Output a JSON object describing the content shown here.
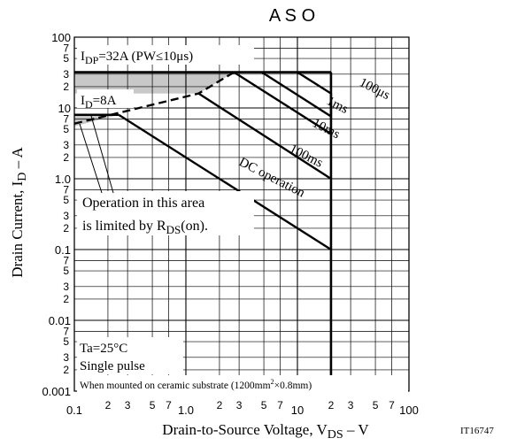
{
  "chart_data": {
    "type": "line",
    "title": "A S O",
    "xlabel": {
      "main": "Drain-to-Source Voltage, V",
      "sub": "DS",
      "tail": " – V"
    },
    "ylabel": {
      "main": "Drain Current, I",
      "sub": "D",
      "tail": " – A"
    },
    "xscale": "log",
    "yscale": "log",
    "xlim": [
      0.1,
      100
    ],
    "ylim": [
      0.001,
      100
    ],
    "grid": true,
    "x_major_ticks": [
      {
        "v": 0.1,
        "label": "0.1"
      },
      {
        "v": 1,
        "label": "1.0"
      },
      {
        "v": 10,
        "label": "10"
      },
      {
        "v": 100,
        "label": "100"
      }
    ],
    "x_minor_ticks": [
      {
        "v": 0.2,
        "label": "2"
      },
      {
        "v": 0.3,
        "label": "3"
      },
      {
        "v": 0.5,
        "label": "5"
      },
      {
        "v": 0.7,
        "label": "7"
      },
      {
        "v": 2,
        "label": "2"
      },
      {
        "v": 3,
        "label": "3"
      },
      {
        "v": 5,
        "label": "5"
      },
      {
        "v": 7,
        "label": "7"
      },
      {
        "v": 20,
        "label": "2"
      },
      {
        "v": 30,
        "label": "3"
      },
      {
        "v": 50,
        "label": "5"
      },
      {
        "v": 70,
        "label": "7"
      }
    ],
    "y_major_ticks": [
      {
        "v": 0.001,
        "label": "0.001"
      },
      {
        "v": 0.01,
        "label": "0.01"
      },
      {
        "v": 0.1,
        "label": "0.1"
      },
      {
        "v": 1,
        "label": "1.0"
      },
      {
        "v": 10,
        "label": "10"
      },
      {
        "v": 100,
        "label": "100"
      }
    ],
    "y_minor_ticks": [
      {
        "v": 0.002,
        "label": "2"
      },
      {
        "v": 0.003,
        "label": "3"
      },
      {
        "v": 0.005,
        "label": "5"
      },
      {
        "v": 0.007,
        "label": "7"
      },
      {
        "v": 0.02,
        "label": "2"
      },
      {
        "v": 0.03,
        "label": "3"
      },
      {
        "v": 0.05,
        "label": "5"
      },
      {
        "v": 0.07,
        "label": "7"
      },
      {
        "v": 0.2,
        "label": "2"
      },
      {
        "v": 0.3,
        "label": "3"
      },
      {
        "v": 0.5,
        "label": "5"
      },
      {
        "v": 0.7,
        "label": "7"
      },
      {
        "v": 2,
        "label": "2"
      },
      {
        "v": 3,
        "label": "3"
      },
      {
        "v": 5,
        "label": "5"
      },
      {
        "v": 7,
        "label": "7"
      },
      {
        "v": 20,
        "label": "2"
      },
      {
        "v": 30,
        "label": "3"
      },
      {
        "v": 50,
        "label": "5"
      },
      {
        "v": 70,
        "label": "7"
      }
    ],
    "series": [
      {
        "name": "100μs",
        "points": [
          [
            10,
            32
          ],
          [
            20,
            16
          ],
          [
            20,
            7
          ]
        ]
      },
      {
        "name": "1ms",
        "points": [
          [
            4.8,
            32
          ],
          [
            20,
            7.6
          ]
        ]
      },
      {
        "name": "10ms",
        "points": [
          [
            2.7,
            32
          ],
          [
            20,
            4.3
          ]
        ]
      },
      {
        "name": "100ms",
        "points": [
          [
            1.3,
            16
          ],
          [
            20,
            1.0
          ]
        ]
      },
      {
        "name": "DC operation",
        "points": [
          [
            0.25,
            8
          ],
          [
            20,
            0.1
          ]
        ]
      }
    ],
    "limit_lines": {
      "idp_limit": {
        "points": [
          [
            0.1,
            32
          ],
          [
            20,
            32
          ]
        ]
      },
      "id_limit": {
        "points": [
          [
            0.1,
            8
          ],
          [
            0.25,
            8
          ]
        ]
      },
      "vdss_limit": {
        "points": [
          [
            20,
            32
          ],
          [
            20,
            0.001
          ]
        ]
      },
      "rds_on_limit": {
        "points": [
          [
            0.1,
            6
          ],
          [
            1.3,
            16
          ],
          [
            2.7,
            32
          ]
        ]
      }
    },
    "annotations": {
      "idp": {
        "pre": "I",
        "sub": "DP",
        "post": "=32A (PW≤10μs)"
      },
      "id": {
        "pre": "I",
        "sub": "D",
        "post": "=8A"
      },
      "rds_line1": "Operation in this area",
      "rds_line2_pre": "is limited by R",
      "rds_line2_sub": "DS",
      "rds_line2_post": "(on).",
      "ta": "Ta=25°C",
      "pulse": "Single pulse",
      "mount_pre": "When mounted on ceramic substrate (1200mm",
      "mount_sup": "2",
      "mount_post": "×0.8mm)",
      "code": "IT16747"
    },
    "colors": {
      "line": "#000000",
      "grid": "#000000",
      "shade": "#c8c8c8"
    }
  }
}
